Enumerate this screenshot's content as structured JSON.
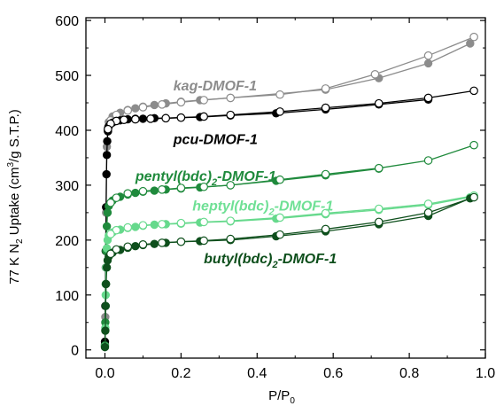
{
  "chart_data": {
    "type": "scatter",
    "title": "",
    "xlabel": "P/P",
    "xlabel_sub": "0",
    "ylabel": "77 K N",
    "ylabel_sub": "2",
    "ylabel_rest": " Uptake (cm",
    "ylabel_sup": "3",
    "ylabel_end": "/g S.T.P.)",
    "xlim": [
      -0.05,
      1.0
    ],
    "ylim": [
      -15,
      605
    ],
    "x_ticks": [
      "0.0",
      "0.2",
      "0.4",
      "0.6",
      "0.8",
      "1.0"
    ],
    "y_ticks": [
      "0",
      "100",
      "200",
      "300",
      "400",
      "500",
      "600"
    ],
    "grid": false,
    "series": [
      {
        "name": "kag-DMOF-1",
        "label_parts": [
          "kag-DMOF-1"
        ],
        "color": "#8c8c8c",
        "label_color": "#8c8c8c",
        "adsorption": [
          [
            0.0,
            10
          ],
          [
            0.001,
            60
          ],
          [
            0.002,
            150
          ],
          [
            0.003,
            250
          ],
          [
            0.004,
            320
          ],
          [
            0.005,
            370
          ],
          [
            0.007,
            400
          ],
          [
            0.01,
            415
          ],
          [
            0.02,
            425
          ],
          [
            0.04,
            432
          ],
          [
            0.06,
            437
          ],
          [
            0.08,
            440
          ],
          [
            0.1,
            443
          ],
          [
            0.13,
            446
          ],
          [
            0.16,
            449
          ],
          [
            0.2,
            452
          ],
          [
            0.25,
            455
          ],
          [
            0.33,
            459
          ],
          [
            0.58,
            474
          ],
          [
            0.72,
            495
          ],
          [
            0.85,
            522
          ],
          [
            0.96,
            558
          ]
        ],
        "desorption": [
          [
            0.97,
            570
          ],
          [
            0.85,
            536
          ],
          [
            0.71,
            502
          ],
          [
            0.58,
            476
          ],
          [
            0.46,
            465
          ],
          [
            0.33,
            459
          ],
          [
            0.26,
            455
          ],
          [
            0.2,
            451
          ],
          [
            0.15,
            447
          ],
          [
            0.1,
            442
          ],
          [
            0.06,
            436
          ],
          [
            0.03,
            428
          ],
          [
            0.015,
            418
          ],
          [
            0.008,
            405
          ]
        ]
      },
      {
        "name": "pcu-DMOF-1",
        "label_parts": [
          "pcu-DMOF-1"
        ],
        "color": "#000000",
        "label_color": "#000000",
        "adsorption": [
          [
            0.0,
            15
          ],
          [
            0.001,
            80
          ],
          [
            0.002,
            180
          ],
          [
            0.003,
            260
          ],
          [
            0.004,
            320
          ],
          [
            0.005,
            355
          ],
          [
            0.006,
            380
          ],
          [
            0.008,
            398
          ],
          [
            0.01,
            407
          ],
          [
            0.02,
            414
          ],
          [
            0.04,
            418
          ],
          [
            0.06,
            420
          ],
          [
            0.08,
            421
          ],
          [
            0.1,
            421
          ],
          [
            0.13,
            422
          ],
          [
            0.16,
            422
          ],
          [
            0.2,
            423
          ],
          [
            0.25,
            424
          ],
          [
            0.33,
            427
          ],
          [
            0.45,
            431
          ],
          [
            0.58,
            438
          ],
          [
            0.72,
            447
          ],
          [
            0.85,
            456
          ]
        ],
        "desorption": [
          [
            0.97,
            472
          ],
          [
            0.85,
            459
          ],
          [
            0.72,
            449
          ],
          [
            0.58,
            441
          ],
          [
            0.46,
            434
          ],
          [
            0.33,
            428
          ],
          [
            0.26,
            425
          ],
          [
            0.2,
            423
          ],
          [
            0.16,
            422
          ],
          [
            0.12,
            421
          ],
          [
            0.08,
            420
          ],
          [
            0.05,
            419
          ],
          [
            0.03,
            417
          ],
          [
            0.015,
            412
          ],
          [
            0.008,
            402
          ]
        ]
      },
      {
        "name": "pentyl(bdc)2-DMOF-1",
        "label_parts": [
          "pentyl(bdc)",
          "2",
          "-DMOF-1"
        ],
        "color": "#1f8a3c",
        "label_color": "#1f8a3c",
        "adsorption": [
          [
            0.0,
            8
          ],
          [
            0.001,
            50
          ],
          [
            0.002,
            120
          ],
          [
            0.003,
            180
          ],
          [
            0.005,
            225
          ],
          [
            0.007,
            250
          ],
          [
            0.01,
            262
          ],
          [
            0.02,
            272
          ],
          [
            0.04,
            279
          ],
          [
            0.06,
            283
          ],
          [
            0.08,
            286
          ],
          [
            0.1,
            288
          ],
          [
            0.13,
            290
          ],
          [
            0.16,
            292
          ],
          [
            0.2,
            294
          ],
          [
            0.25,
            296
          ],
          [
            0.33,
            300
          ],
          [
            0.45,
            308
          ],
          [
            0.58,
            318
          ],
          [
            0.72,
            330
          ]
        ],
        "desorption": [
          [
            0.97,
            373
          ],
          [
            0.85,
            345
          ],
          [
            0.72,
            331
          ],
          [
            0.58,
            320
          ],
          [
            0.46,
            310
          ],
          [
            0.33,
            300
          ],
          [
            0.26,
            297
          ],
          [
            0.2,
            295
          ],
          [
            0.15,
            292
          ],
          [
            0.1,
            289
          ],
          [
            0.06,
            285
          ],
          [
            0.03,
            277
          ],
          [
            0.015,
            268
          ]
        ]
      },
      {
        "name": "heptyl(bdc)2-DMOF-1",
        "label_parts": [
          "heptyl(bdc)",
          "2",
          "-DMOF-1"
        ],
        "color": "#66d98c",
        "label_color": "#6fe095",
        "adsorption": [
          [
            0.0,
            6
          ],
          [
            0.001,
            40
          ],
          [
            0.002,
            100
          ],
          [
            0.003,
            150
          ],
          [
            0.005,
            185
          ],
          [
            0.007,
            200
          ],
          [
            0.01,
            208
          ],
          [
            0.02,
            214
          ],
          [
            0.04,
            219
          ],
          [
            0.06,
            222
          ],
          [
            0.08,
            224
          ],
          [
            0.1,
            226
          ],
          [
            0.13,
            228
          ],
          [
            0.16,
            229
          ],
          [
            0.2,
            230
          ],
          [
            0.25,
            232
          ],
          [
            0.33,
            234
          ],
          [
            0.45,
            239
          ],
          [
            0.58,
            247
          ],
          [
            0.72,
            255
          ],
          [
            0.85,
            264
          ],
          [
            0.96,
            278
          ]
        ],
        "desorption": [
          [
            0.97,
            281
          ],
          [
            0.85,
            266
          ],
          [
            0.72,
            257
          ],
          [
            0.58,
            249
          ],
          [
            0.46,
            241
          ],
          [
            0.33,
            235
          ],
          [
            0.26,
            233
          ],
          [
            0.2,
            231
          ],
          [
            0.15,
            229
          ],
          [
            0.1,
            227
          ],
          [
            0.06,
            223
          ],
          [
            0.03,
            218
          ],
          [
            0.015,
            211
          ]
        ]
      },
      {
        "name": "butyl(bdc)2-DMOF-1",
        "label_parts": [
          "butyl(bdc)",
          "2",
          "-DMOF-1"
        ],
        "color": "#0e4f1c",
        "label_color": "#0e4f1c",
        "adsorption": [
          [
            0.0,
            5
          ],
          [
            0.001,
            35
          ],
          [
            0.002,
            80
          ],
          [
            0.003,
            120
          ],
          [
            0.005,
            150
          ],
          [
            0.007,
            163
          ],
          [
            0.01,
            170
          ],
          [
            0.02,
            177
          ],
          [
            0.04,
            182
          ],
          [
            0.06,
            186
          ],
          [
            0.08,
            189
          ],
          [
            0.1,
            191
          ],
          [
            0.13,
            193
          ],
          [
            0.16,
            195
          ],
          [
            0.2,
            197
          ],
          [
            0.25,
            198
          ],
          [
            0.33,
            200
          ],
          [
            0.45,
            207
          ],
          [
            0.58,
            216
          ],
          [
            0.72,
            229
          ],
          [
            0.85,
            244
          ],
          [
            0.96,
            276
          ]
        ],
        "desorption": [
          [
            0.97,
            278
          ],
          [
            0.85,
            250
          ],
          [
            0.72,
            233
          ],
          [
            0.58,
            220
          ],
          [
            0.46,
            210
          ],
          [
            0.33,
            202
          ],
          [
            0.26,
            199
          ],
          [
            0.2,
            197
          ],
          [
            0.15,
            195
          ],
          [
            0.1,
            192
          ],
          [
            0.06,
            188
          ],
          [
            0.03,
            183
          ],
          [
            0.015,
            175
          ]
        ]
      }
    ]
  }
}
